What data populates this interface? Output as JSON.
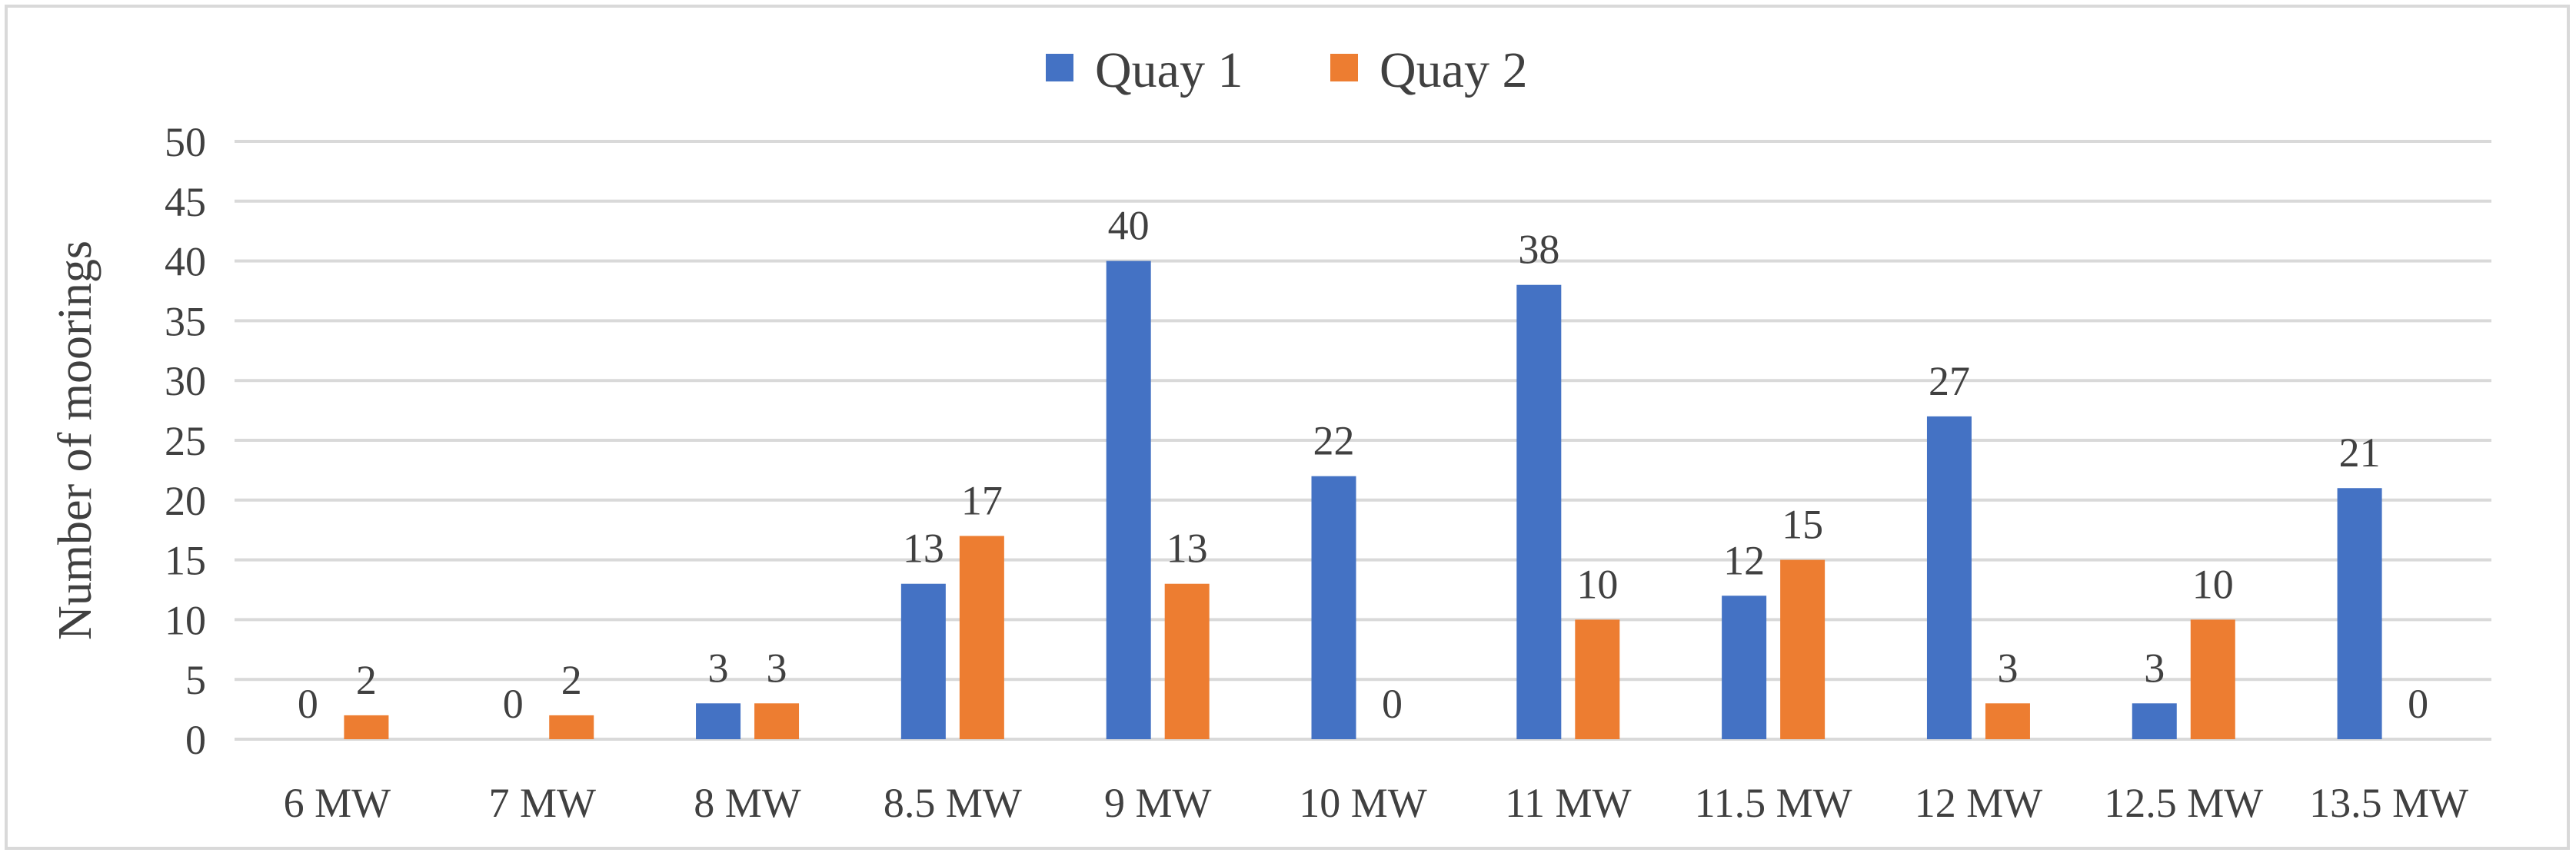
{
  "chart_data": {
    "type": "bar",
    "title": "",
    "xlabel": "",
    "ylabel": "Number of moorings",
    "ylim": [
      0,
      50
    ],
    "y_ticks": [
      0,
      5,
      10,
      15,
      20,
      25,
      30,
      35,
      40,
      45,
      50
    ],
    "grid": true,
    "legend_position": "top-center",
    "categories": [
      "6 MW",
      "7 MW",
      "8 MW",
      "8.5 MW",
      "9 MW",
      "10 MW",
      "11 MW",
      "11.5 MW",
      "12 MW",
      "12.5 MW",
      "13.5 MW"
    ],
    "series": [
      {
        "name": "Quay 1",
        "color": "#4472c4",
        "values": [
          0,
          0,
          3,
          13,
          40,
          22,
          38,
          12,
          27,
          3,
          21
        ]
      },
      {
        "name": "Quay 2",
        "color": "#ed7d31",
        "values": [
          2,
          2,
          3,
          17,
          13,
          0,
          10,
          15,
          3,
          10,
          0
        ]
      }
    ]
  }
}
